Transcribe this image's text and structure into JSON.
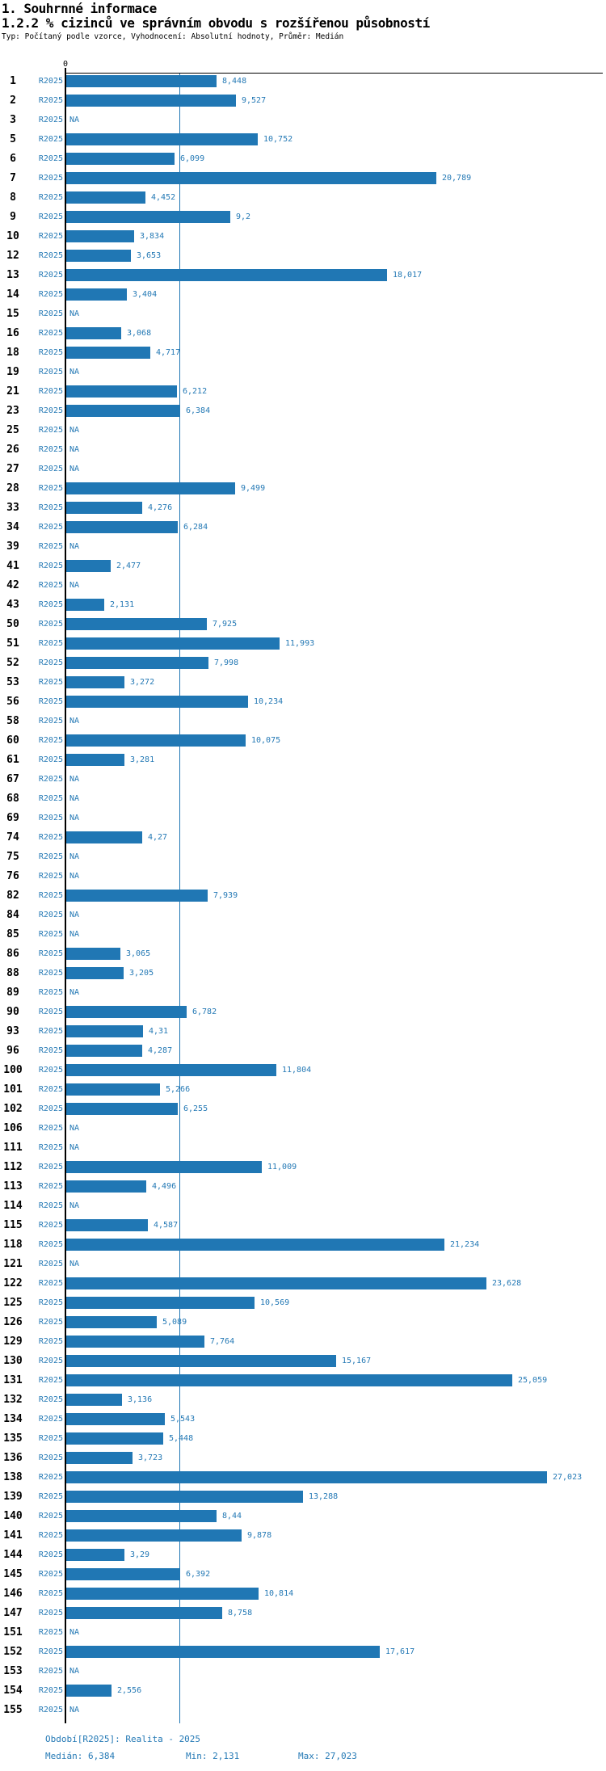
{
  "header": {
    "title1": "1. Souhrnné informace",
    "title2": "1.2.2 % cizinců ve správním obvodu s rozšířenou působností",
    "subtitle": "Typ: Počítaný podle vzorce, Vyhodnocení: Absolutní hodnoty, Průměr: Medián"
  },
  "axis": {
    "zero_label": "0"
  },
  "footer": {
    "period": "Období[R2025]: Realita - 2025",
    "median": "Medián: 6,384",
    "min": "Min: 2,131",
    "max": "Max: 27,023"
  },
  "colors": {
    "bar": "#2077b4",
    "blue_text": "#2479b5",
    "axis": "#000000",
    "median_line": "#2077b4"
  },
  "chart_data": {
    "type": "bar",
    "orientation": "horizontal",
    "title": "1.2.2 % cizinců ve správním obvodu s rozšířenou působností",
    "series_name": "R2025",
    "value_format": "czech decimal comma",
    "xlim": [
      0,
      27.023
    ],
    "median": 6.384,
    "min": 2.131,
    "max": 27.023,
    "grid": "single median reference line",
    "na_text": "NA",
    "rows": [
      {
        "id": "1",
        "value": 8.448,
        "display": "8,448"
      },
      {
        "id": "2",
        "value": 9.527,
        "display": "9,527"
      },
      {
        "id": "3",
        "value": null,
        "display": "NA"
      },
      {
        "id": "5",
        "value": 10.752,
        "display": "10,752"
      },
      {
        "id": "6",
        "value": 6.099,
        "display": "6,099"
      },
      {
        "id": "7",
        "value": 20.789,
        "display": "20,789"
      },
      {
        "id": "8",
        "value": 4.452,
        "display": "4,452"
      },
      {
        "id": "9",
        "value": 9.2,
        "display": "9,2"
      },
      {
        "id": "10",
        "value": 3.834,
        "display": "3,834"
      },
      {
        "id": "12",
        "value": 3.653,
        "display": "3,653"
      },
      {
        "id": "13",
        "value": 18.017,
        "display": "18,017"
      },
      {
        "id": "14",
        "value": 3.404,
        "display": "3,404"
      },
      {
        "id": "15",
        "value": null,
        "display": "NA"
      },
      {
        "id": "16",
        "value": 3.068,
        "display": "3,068"
      },
      {
        "id": "18",
        "value": 4.717,
        "display": "4,717"
      },
      {
        "id": "19",
        "value": null,
        "display": "NA"
      },
      {
        "id": "21",
        "value": 6.212,
        "display": "6,212"
      },
      {
        "id": "23",
        "value": 6.384,
        "display": "6,384"
      },
      {
        "id": "25",
        "value": null,
        "display": "NA"
      },
      {
        "id": "26",
        "value": null,
        "display": "NA"
      },
      {
        "id": "27",
        "value": null,
        "display": "NA"
      },
      {
        "id": "28",
        "value": 9.499,
        "display": "9,499"
      },
      {
        "id": "33",
        "value": 4.276,
        "display": "4,276"
      },
      {
        "id": "34",
        "value": 6.284,
        "display": "6,284"
      },
      {
        "id": "39",
        "value": null,
        "display": "NA"
      },
      {
        "id": "41",
        "value": 2.477,
        "display": "2,477"
      },
      {
        "id": "42",
        "value": null,
        "display": "NA"
      },
      {
        "id": "43",
        "value": 2.131,
        "display": "2,131"
      },
      {
        "id": "50",
        "value": 7.925,
        "display": "7,925"
      },
      {
        "id": "51",
        "value": 11.993,
        "display": "11,993"
      },
      {
        "id": "52",
        "value": 7.998,
        "display": "7,998"
      },
      {
        "id": "53",
        "value": 3.272,
        "display": "3,272"
      },
      {
        "id": "56",
        "value": 10.234,
        "display": "10,234"
      },
      {
        "id": "58",
        "value": null,
        "display": "NA"
      },
      {
        "id": "60",
        "value": 10.075,
        "display": "10,075"
      },
      {
        "id": "61",
        "value": 3.281,
        "display": "3,281"
      },
      {
        "id": "67",
        "value": null,
        "display": "NA"
      },
      {
        "id": "68",
        "value": null,
        "display": "NA"
      },
      {
        "id": "69",
        "value": null,
        "display": "NA"
      },
      {
        "id": "74",
        "value": 4.27,
        "display": "4,27"
      },
      {
        "id": "75",
        "value": null,
        "display": "NA"
      },
      {
        "id": "76",
        "value": null,
        "display": "NA"
      },
      {
        "id": "82",
        "value": 7.939,
        "display": "7,939"
      },
      {
        "id": "84",
        "value": null,
        "display": "NA"
      },
      {
        "id": "85",
        "value": null,
        "display": "NA"
      },
      {
        "id": "86",
        "value": 3.065,
        "display": "3,065"
      },
      {
        "id": "88",
        "value": 3.205,
        "display": "3,205"
      },
      {
        "id": "89",
        "value": null,
        "display": "NA"
      },
      {
        "id": "90",
        "value": 6.782,
        "display": "6,782"
      },
      {
        "id": "93",
        "value": 4.31,
        "display": "4,31"
      },
      {
        "id": "96",
        "value": 4.287,
        "display": "4,287"
      },
      {
        "id": "100",
        "value": 11.804,
        "display": "11,804"
      },
      {
        "id": "101",
        "value": 5.266,
        "display": "5,266"
      },
      {
        "id": "102",
        "value": 6.255,
        "display": "6,255"
      },
      {
        "id": "106",
        "value": null,
        "display": "NA"
      },
      {
        "id": "111",
        "value": null,
        "display": "NA"
      },
      {
        "id": "112",
        "value": 11.009,
        "display": "11,009"
      },
      {
        "id": "113",
        "value": 4.496,
        "display": "4,496"
      },
      {
        "id": "114",
        "value": null,
        "display": "NA"
      },
      {
        "id": "115",
        "value": 4.587,
        "display": "4,587"
      },
      {
        "id": "118",
        "value": 21.234,
        "display": "21,234"
      },
      {
        "id": "121",
        "value": null,
        "display": "NA"
      },
      {
        "id": "122",
        "value": 23.628,
        "display": "23,628"
      },
      {
        "id": "125",
        "value": 10.569,
        "display": "10,569"
      },
      {
        "id": "126",
        "value": 5.089,
        "display": "5,089"
      },
      {
        "id": "129",
        "value": 7.764,
        "display": "7,764"
      },
      {
        "id": "130",
        "value": 15.167,
        "display": "15,167"
      },
      {
        "id": "131",
        "value": 25.059,
        "display": "25,059"
      },
      {
        "id": "132",
        "value": 3.136,
        "display": "3,136"
      },
      {
        "id": "134",
        "value": 5.543,
        "display": "5,543"
      },
      {
        "id": "135",
        "value": 5.448,
        "display": "5,448"
      },
      {
        "id": "136",
        "value": 3.723,
        "display": "3,723"
      },
      {
        "id": "138",
        "value": 27.023,
        "display": "27,023"
      },
      {
        "id": "139",
        "value": 13.288,
        "display": "13,288"
      },
      {
        "id": "140",
        "value": 8.44,
        "display": "8,44"
      },
      {
        "id": "141",
        "value": 9.878,
        "display": "9,878"
      },
      {
        "id": "144",
        "value": 3.29,
        "display": "3,29"
      },
      {
        "id": "145",
        "value": 6.392,
        "display": "6,392"
      },
      {
        "id": "146",
        "value": 10.814,
        "display": "10,814"
      },
      {
        "id": "147",
        "value": 8.758,
        "display": "8,758"
      },
      {
        "id": "151",
        "value": null,
        "display": "NA"
      },
      {
        "id": "152",
        "value": 17.617,
        "display": "17,617"
      },
      {
        "id": "153",
        "value": null,
        "display": "NA"
      },
      {
        "id": "154",
        "value": 2.556,
        "display": "2,556"
      },
      {
        "id": "155",
        "value": null,
        "display": "NA"
      }
    ]
  }
}
